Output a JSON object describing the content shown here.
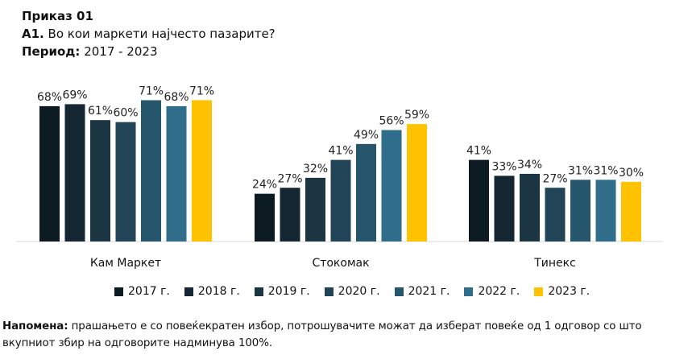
{
  "header": {
    "title": "Приказ 01",
    "question_code": "A1.",
    "question_text": "Во кои маркети најчесто пазарите?",
    "period_label": "Период:",
    "period_value": "2017 - 2023"
  },
  "chart_data": {
    "type": "bar",
    "categories": [
      "Кам Маркет",
      "Стокомак",
      "Тинекс"
    ],
    "series": [
      {
        "name": "2017 г.",
        "color": "#0c1a22",
        "values": [
          68,
          24,
          41
        ]
      },
      {
        "name": "2018 г.",
        "color": "#132631",
        "values": [
          69,
          27,
          33
        ]
      },
      {
        "name": "2019 г.",
        "color": "#1b3543",
        "values": [
          61,
          32,
          34
        ]
      },
      {
        "name": "2020 г.",
        "color": "#214456",
        "values": [
          60,
          41,
          27
        ]
      },
      {
        "name": "2021 г.",
        "color": "#26566c",
        "values": [
          71,
          49,
          31
        ]
      },
      {
        "name": "2022 г.",
        "color": "#2f6d8a",
        "values": [
          68,
          56,
          31
        ]
      },
      {
        "name": "2023 г.",
        "color": "#fec200",
        "values": [
          71,
          59,
          30
        ]
      }
    ],
    "value_suffix": "%",
    "ylim": [
      0,
      72
    ],
    "grid": false,
    "legend_position": "bottom"
  },
  "note": {
    "label": "Напомена:",
    "text": "прашањето е со повеќекратен избор, потрошувачите можат да изберат повеќе од 1 одговор со што вкупниот збир на одговорите надминува 100%."
  }
}
